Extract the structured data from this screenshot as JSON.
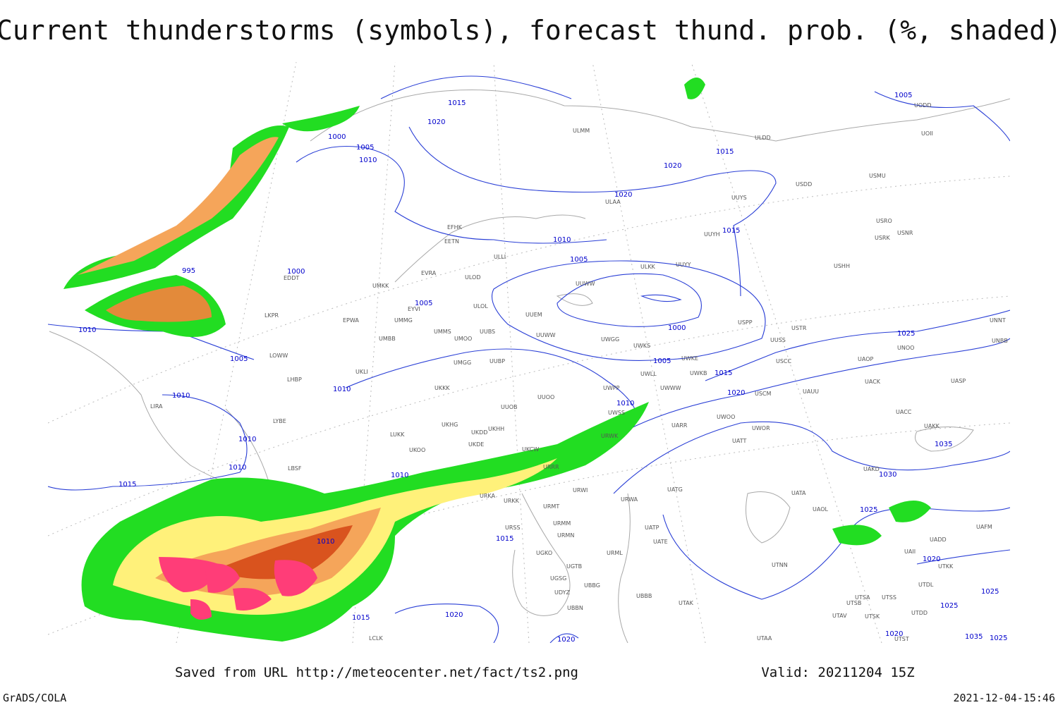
{
  "title": "Current thunderstorms (symbols), forecast thund. prob. (%, shaded)",
  "footer": {
    "source": "Saved from URL http://meteocenter.net/fact/ts2.png",
    "valid": "Valid: 20211204 15Z",
    "software": "GrADS/COLA",
    "timestamp": "2021-12-04-15:46"
  },
  "isobar_labels": [
    1015,
    1020,
    1000,
    1005,
    1010,
    995,
    1000,
    1005,
    1010,
    1005,
    1010,
    1010,
    1010,
    1010,
    1015,
    1010,
    1010,
    1015,
    1020,
    1015,
    1020,
    1010,
    1005,
    1000,
    1005,
    1010,
    1015,
    1020,
    1020,
    1020,
    1015,
    1015,
    1005,
    1025,
    1035,
    1030,
    1025,
    1020,
    1025,
    1025,
    1020,
    1035,
    1025
  ],
  "stations": [
    "ULMM",
    "ULDD",
    "UODD",
    "UOII",
    "USMU",
    "USDD",
    "ULAA",
    "UUYS",
    "USRO",
    "USRK",
    "USNR",
    "UUYH",
    "USHH",
    "UUYY",
    "ULKK",
    "EFHK",
    "EETN",
    "ULLI",
    "EVRA",
    "ULOD",
    "EDDT",
    "UMKK",
    "UUWW",
    "ULOL",
    "EYVI",
    "UUEM",
    "LKPR",
    "EPWA",
    "UMMG",
    "UUSS",
    "USTR",
    "UNNT",
    "UNBB",
    "UMMS",
    "UMOO",
    "UUBS",
    "UUWW",
    "UWGG",
    "UWKS",
    "USPP",
    "UNOO",
    "UMBB",
    "LOWW",
    "UWKE",
    "USCC",
    "UAOP",
    "UMGG",
    "UUBP",
    "UKLI",
    "UWKB",
    "LHBP",
    "UWWW",
    "UACK",
    "UASP",
    "UKKK",
    "USCM",
    "UUOO",
    "UWPP",
    "UWLL",
    "UAUU",
    "LIRA",
    "UUOB",
    "LYBE",
    "UWSS",
    "UARR",
    "UWOO",
    "UACC",
    "UKHG",
    "UKDD",
    "UKHH",
    "UWOR",
    "UAKK",
    "LUKK",
    "UKDE",
    "URWK",
    "UATT",
    "UKOO",
    "UKCW",
    "URRR",
    "UAKD",
    "LBSF",
    "UATG",
    "URWI",
    "UATA",
    "URKA",
    "URKK",
    "URMT",
    "URWA",
    "UAOL",
    "URSS",
    "URMM",
    "UATP",
    "URMN",
    "UATE",
    "UAFM",
    "UADD",
    "UGKO",
    "UAII",
    "URML",
    "UGTB",
    "UTNN",
    "UTKK",
    "UBBG",
    "UGSG",
    "UDYZ",
    "UTDL",
    "UBBB",
    "UTSA",
    "UTSS",
    "UBBN",
    "UTAK",
    "UTSB",
    "UTDD",
    "UTAV",
    "UTSK",
    "LCLK",
    "UTAA",
    "UTST"
  ]
}
